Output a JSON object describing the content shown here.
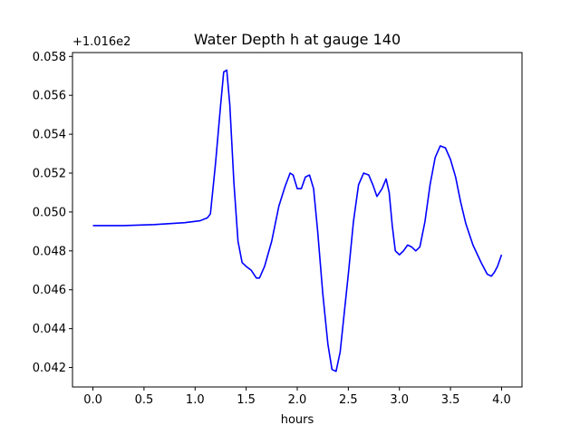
{
  "chart_data": {
    "type": "line",
    "title": "Water Depth h at gauge 140",
    "xlabel": "hours",
    "ylabel": "",
    "y_offset_label": "+1.016e2",
    "xlim": [
      -0.2,
      4.2
    ],
    "ylim": [
      0.041,
      0.0582
    ],
    "x_ticks": [
      0.0,
      0.5,
      1.0,
      1.5,
      2.0,
      2.5,
      3.0,
      3.5,
      4.0
    ],
    "x_tick_labels": [
      "0.0",
      "0.5",
      "1.0",
      "1.5",
      "2.0",
      "2.5",
      "3.0",
      "3.5",
      "4.0"
    ],
    "y_ticks": [
      0.042,
      0.044,
      0.046,
      0.048,
      0.05,
      0.052,
      0.054,
      0.056,
      0.058
    ],
    "y_tick_labels": [
      "0.042",
      "0.044",
      "0.046",
      "0.048",
      "0.050",
      "0.052",
      "0.054",
      "0.056",
      "0.058"
    ],
    "grid": false,
    "series": [
      {
        "color": "#0000ff",
        "x": [
          0.0,
          0.3,
          0.6,
          0.9,
          1.05,
          1.12,
          1.15,
          1.2,
          1.25,
          1.28,
          1.31,
          1.34,
          1.38,
          1.42,
          1.46,
          1.5,
          1.55,
          1.6,
          1.63,
          1.68,
          1.75,
          1.82,
          1.88,
          1.93,
          1.96,
          2.0,
          2.04,
          2.08,
          2.12,
          2.16,
          2.2,
          2.25,
          2.3,
          2.34,
          2.38,
          2.42,
          2.46,
          2.5,
          2.55,
          2.6,
          2.65,
          2.7,
          2.74,
          2.78,
          2.83,
          2.87,
          2.9,
          2.93,
          2.96,
          3.0,
          3.04,
          3.08,
          3.12,
          3.16,
          3.2,
          3.25,
          3.3,
          3.35,
          3.4,
          3.45,
          3.5,
          3.55,
          3.6,
          3.65,
          3.72,
          3.8,
          3.86,
          3.9,
          3.93,
          3.96,
          4.0
        ],
        "y": [
          0.0493,
          0.0493,
          0.04935,
          0.04945,
          0.04955,
          0.0497,
          0.0499,
          0.0525,
          0.0555,
          0.0572,
          0.0573,
          0.0555,
          0.0515,
          0.0485,
          0.0474,
          0.0472,
          0.047,
          0.0466,
          0.0466,
          0.0472,
          0.0485,
          0.0503,
          0.0513,
          0.052,
          0.0519,
          0.0512,
          0.0512,
          0.0518,
          0.0519,
          0.0512,
          0.049,
          0.0458,
          0.0432,
          0.0419,
          0.0418,
          0.0428,
          0.0448,
          0.0468,
          0.0495,
          0.0514,
          0.052,
          0.0519,
          0.0514,
          0.0508,
          0.0512,
          0.0517,
          0.051,
          0.0493,
          0.048,
          0.0478,
          0.048,
          0.0483,
          0.0482,
          0.048,
          0.0482,
          0.0495,
          0.0514,
          0.0528,
          0.0534,
          0.0533,
          0.0527,
          0.0518,
          0.0505,
          0.0494,
          0.0483,
          0.0474,
          0.0468,
          0.0467,
          0.0469,
          0.0472,
          0.0478
        ]
      }
    ]
  }
}
